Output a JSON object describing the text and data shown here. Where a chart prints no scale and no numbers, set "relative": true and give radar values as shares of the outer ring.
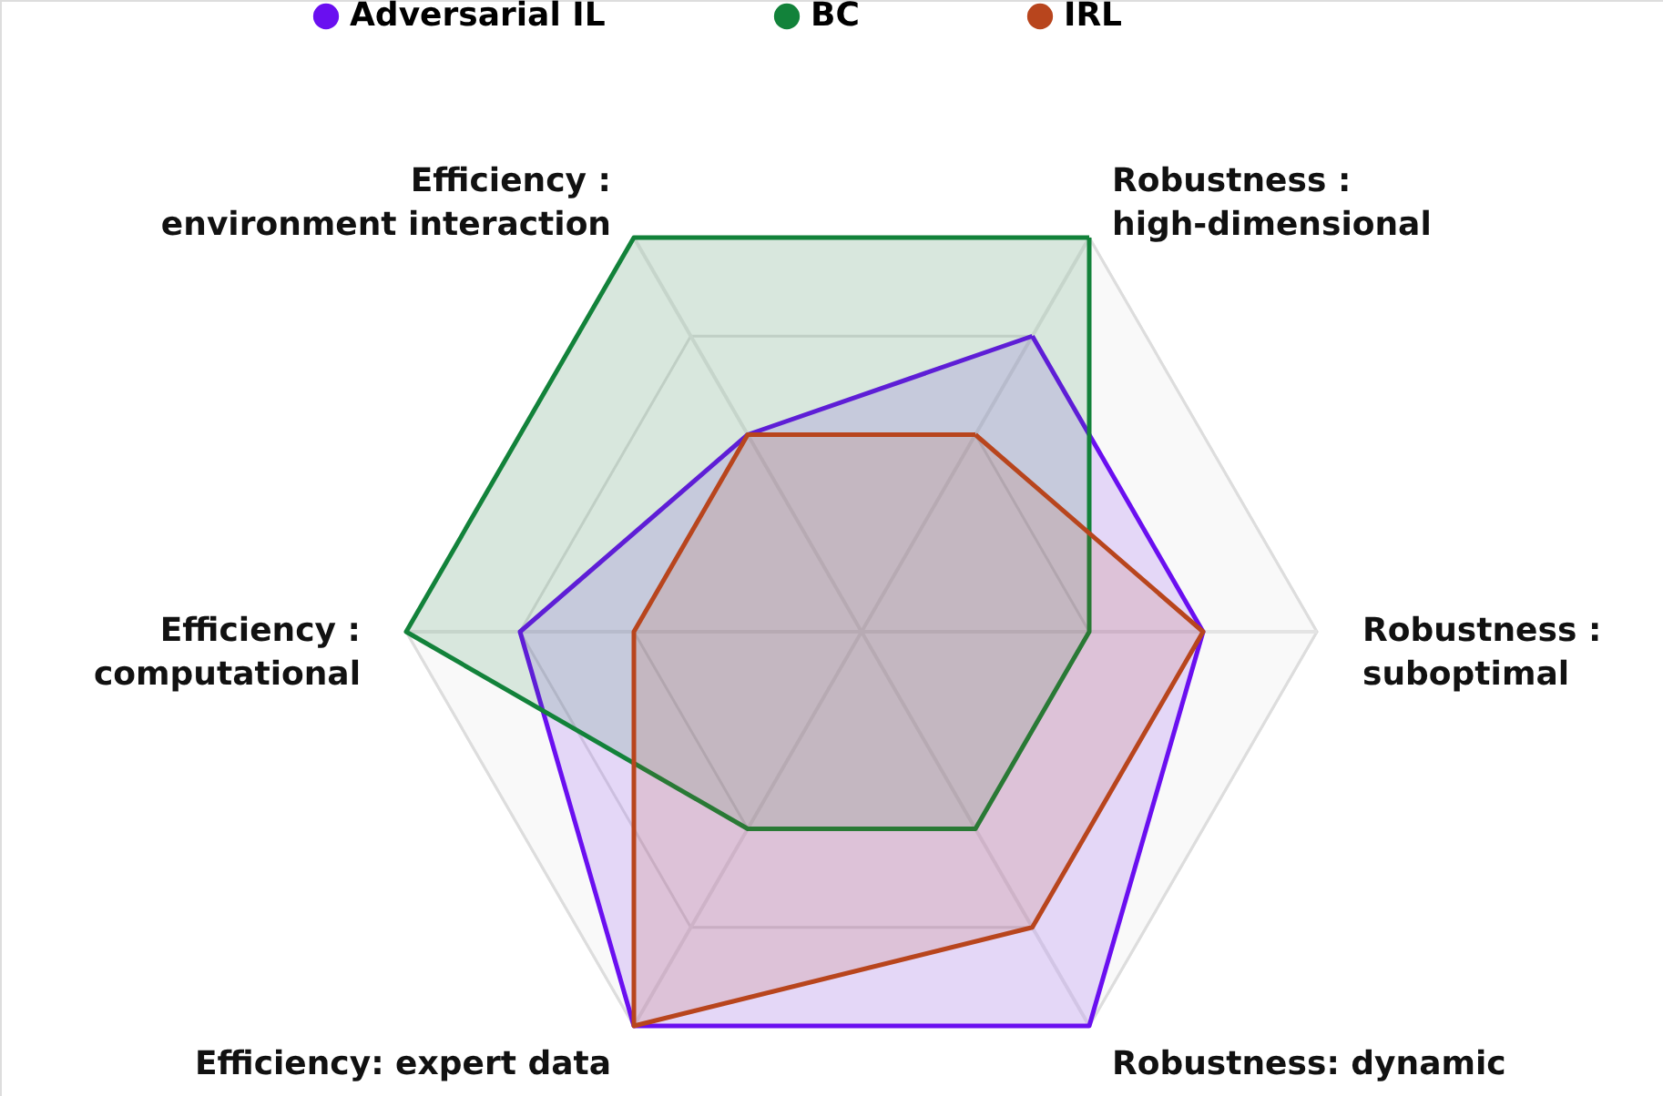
{
  "chart_data": {
    "type": "radar",
    "relative": true,
    "grid": true,
    "legend": "top",
    "categories": [
      "Robustness :\nhigh-dimensional",
      "Robustness :\nsuboptimal",
      "Robustness: dynamic",
      "Efficiency: expert data",
      "Efficiency :\ncomputational",
      "Efficiency :\nenvironment interaction"
    ],
    "series": [
      {
        "name": "Adversarial IL",
        "color": "#6a0ff0",
        "values": [
          0.75,
          0.75,
          1,
          1,
          0.75,
          0.5
        ]
      },
      {
        "name": "BC",
        "color": "#12823a",
        "values": [
          1,
          0.5,
          0.5,
          0.5,
          1,
          1
        ]
      },
      {
        "name": "IRL",
        "color": "#b8451d",
        "values": [
          0.5,
          0.75,
          0.75,
          1,
          0.5,
          0.5
        ]
      }
    ]
  }
}
